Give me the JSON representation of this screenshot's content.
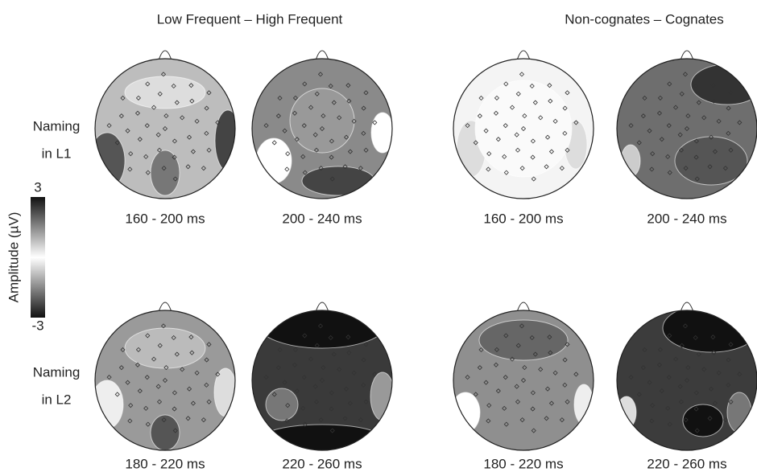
{
  "column_headers": [
    "Low Frequent – High Frequent",
    "Non-cognates – Cognates"
  ],
  "row_labels": [
    [
      "Naming",
      "in L1"
    ],
    [
      "Naming",
      "in L2"
    ]
  ],
  "colorbar": {
    "label": "Amplitude (µV)",
    "max": 3,
    "min": -3
  },
  "maps": [
    [
      "160 - 200 ms",
      "200 - 240 ms",
      "160 - 200 ms",
      "200 - 240 ms"
    ],
    [
      "180 - 220 ms",
      "220 - 260 ms",
      "180 - 220 ms",
      "220 - 260 ms"
    ]
  ]
}
